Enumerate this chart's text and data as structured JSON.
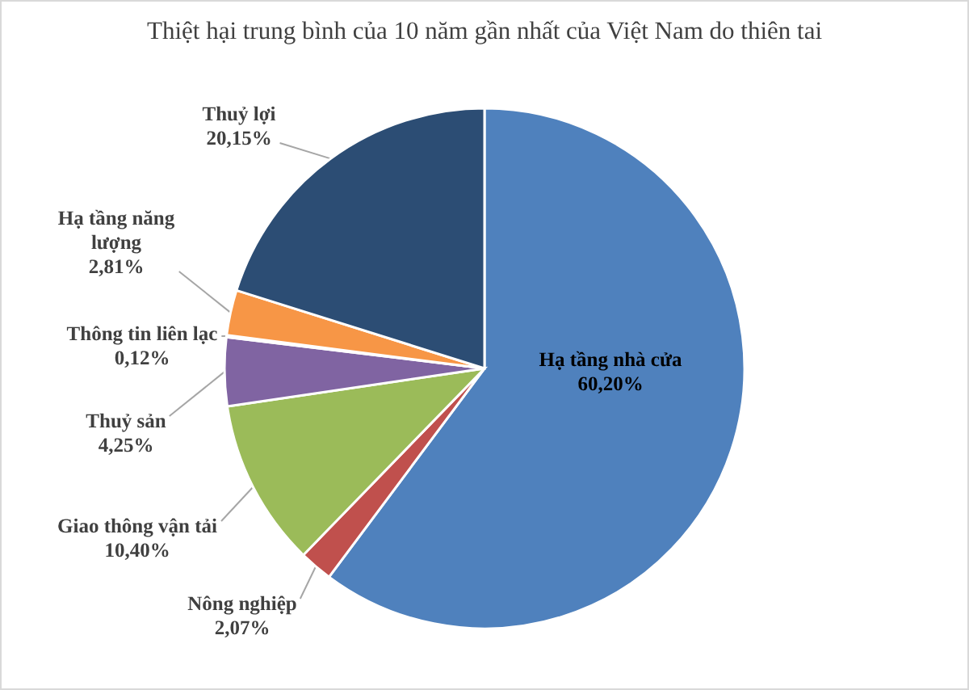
{
  "chart_data": {
    "type": "pie",
    "title": "Thiệt hại trung bình của 10 năm gần nhất của Việt Nam do thiên tai",
    "categories": [
      "Hạ tầng nhà cửa",
      "Nông nghiệp",
      "Giao thông vận tải",
      "Thuỷ sản",
      "Thông tin liên lạc",
      "Hạ tầng năng lượng",
      "Thuỷ lợi"
    ],
    "values": [
      60.2,
      2.07,
      10.4,
      4.25,
      0.12,
      2.81,
      20.15
    ],
    "value_labels": [
      "60,20%",
      "2,07%",
      "10,40%",
      "4,25%",
      "0,12%",
      "2,81%",
      "20,15%"
    ],
    "colors": [
      "#4f81bd",
      "#c0504d",
      "#9bbb59",
      "#8064a2",
      "#4bacc6",
      "#f79646",
      "#2c4d74"
    ]
  }
}
